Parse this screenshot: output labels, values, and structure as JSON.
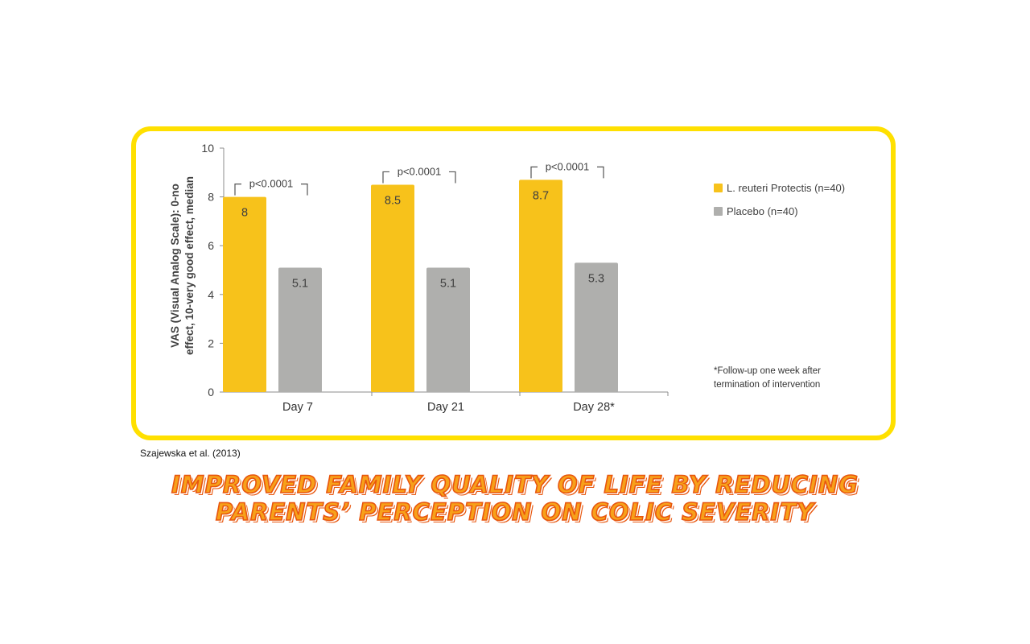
{
  "colors": {
    "frame_border": "#FFE000",
    "reuteri": "#F7C21B",
    "placebo": "#AFAFAD",
    "headline_fill": "#F7A11A",
    "headline_outline": "#E8560E",
    "axis": "#8C8C8C",
    "text": "#404040"
  },
  "chart_data": {
    "type": "bar",
    "title": "",
    "categories": [
      "Day 7",
      "Day 21",
      "Day 28*"
    ],
    "series": [
      {
        "name": "L. reuteri Protectis (n=40)",
        "values": [
          8,
          8.5,
          8.7
        ],
        "color": "#F7C21B"
      },
      {
        "name": "Placebo (n=40)",
        "values": [
          5.1,
          5.1,
          5.3
        ],
        "color": "#AFAFAD"
      }
    ],
    "data_labels": [
      [
        "8",
        "8.5",
        "8.7"
      ],
      [
        "5.1",
        "5.1",
        "5.3"
      ]
    ],
    "annotations": [
      "p<0.0001",
      "p<0.0001",
      "p<0.0001"
    ],
    "ylabel_lines": [
      "VAS (Visual Analog Scale): 0-no",
      "effect, 10-very good effect, median"
    ],
    "xlabel": "",
    "ylim": [
      0,
      10
    ],
    "yticks": [
      0,
      2,
      4,
      6,
      8,
      10
    ],
    "grid": false,
    "legend_position": "right"
  },
  "footnote": {
    "line1": "*Follow-up one  week after",
    "line2": "termination of intervention"
  },
  "source": "Szajewska et al. (2013)",
  "headline": {
    "line1": "IMPROVED FAMILY QUALITY OF LIFE BY REDUCING",
    "line2": "PARENTS’ PERCEPTION ON COLIC SEVERITY"
  }
}
